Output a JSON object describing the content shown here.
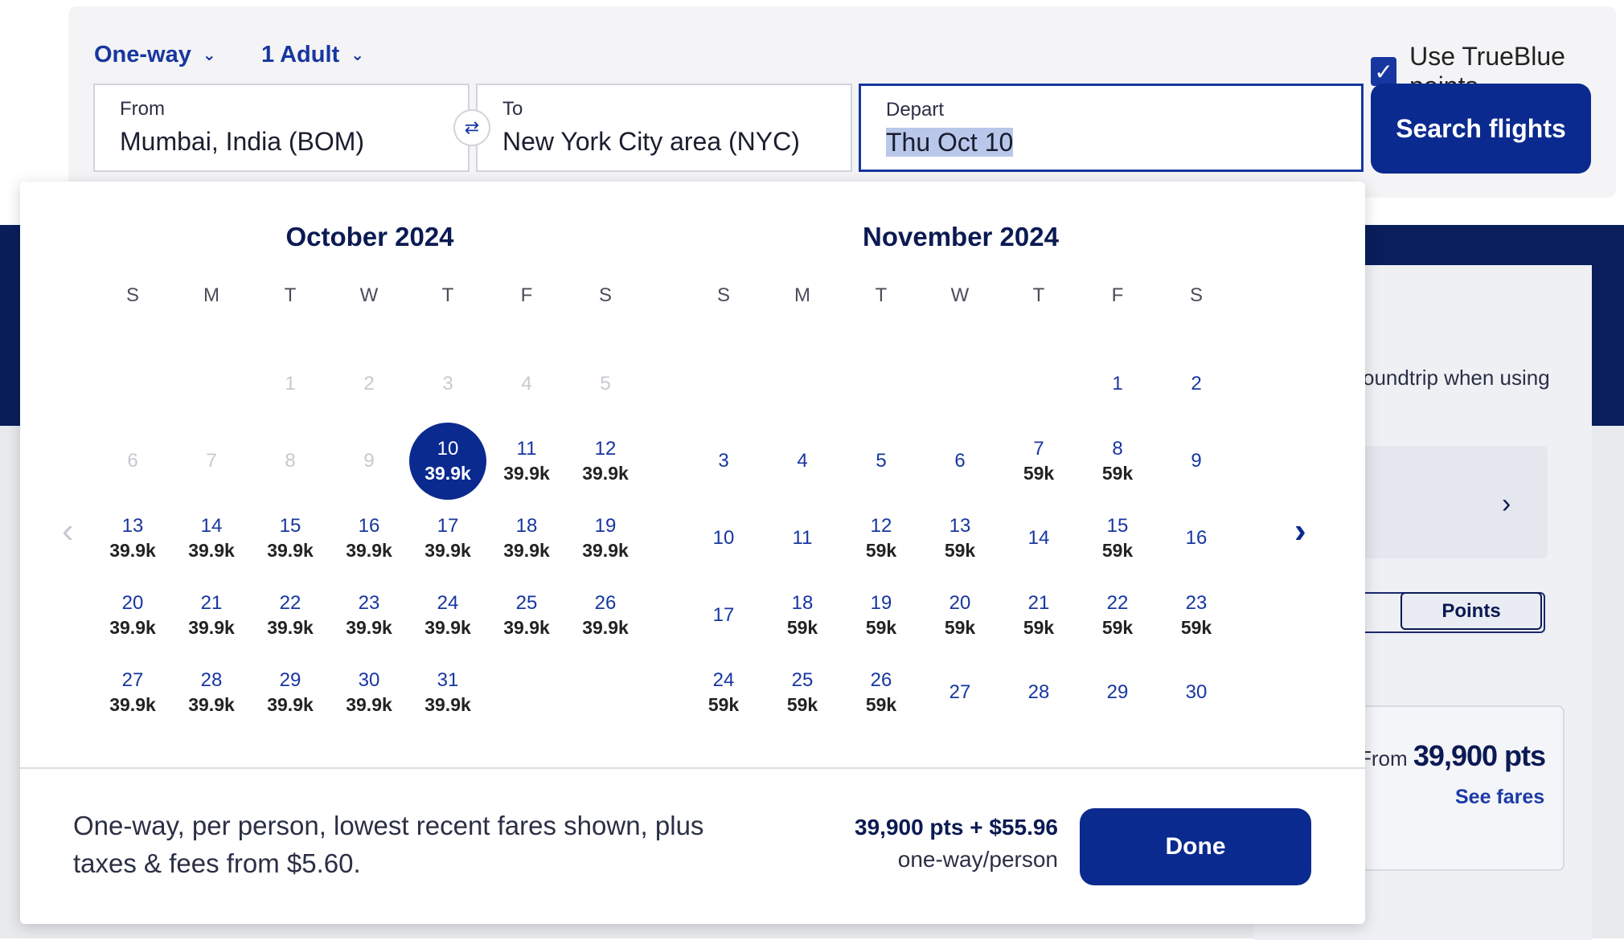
{
  "background": {
    "promo_text": "oundtrip when using",
    "points_toggle": "Points",
    "from_label": "From",
    "from_points": "39,900 pts",
    "see_fares": "See fares"
  },
  "search": {
    "trip_type": "One-way",
    "passengers": "1 Adult",
    "trueblue_label": "Use TrueBlue points",
    "trueblue_checked": true,
    "from_label": "From",
    "from_value": "Mumbai, India (BOM)",
    "to_label": "To",
    "to_value": "New York City area (NYC)",
    "depart_label": "Depart",
    "depart_value": "Thu Oct 10",
    "search_button": "Search flights"
  },
  "calendar": {
    "weekdays": [
      "S",
      "M",
      "T",
      "W",
      "T",
      "F",
      "S"
    ],
    "months": [
      {
        "title": "October 2024",
        "first_weekday": 2,
        "days": [
          {
            "d": "1",
            "p": "",
            "disabled": true
          },
          {
            "d": "2",
            "p": "",
            "disabled": true
          },
          {
            "d": "3",
            "p": "",
            "disabled": true
          },
          {
            "d": "4",
            "p": "",
            "disabled": true
          },
          {
            "d": "5",
            "p": "",
            "disabled": true
          },
          {
            "d": "6",
            "p": "",
            "disabled": true
          },
          {
            "d": "7",
            "p": "",
            "disabled": true
          },
          {
            "d": "8",
            "p": "",
            "disabled": true
          },
          {
            "d": "9",
            "p": "",
            "disabled": true
          },
          {
            "d": "10",
            "p": "39.9k",
            "selected": true
          },
          {
            "d": "11",
            "p": "39.9k"
          },
          {
            "d": "12",
            "p": "39.9k"
          },
          {
            "d": "13",
            "p": "39.9k"
          },
          {
            "d": "14",
            "p": "39.9k"
          },
          {
            "d": "15",
            "p": "39.9k"
          },
          {
            "d": "16",
            "p": "39.9k"
          },
          {
            "d": "17",
            "p": "39.9k"
          },
          {
            "d": "18",
            "p": "39.9k"
          },
          {
            "d": "19",
            "p": "39.9k"
          },
          {
            "d": "20",
            "p": "39.9k"
          },
          {
            "d": "21",
            "p": "39.9k"
          },
          {
            "d": "22",
            "p": "39.9k"
          },
          {
            "d": "23",
            "p": "39.9k"
          },
          {
            "d": "24",
            "p": "39.9k"
          },
          {
            "d": "25",
            "p": "39.9k"
          },
          {
            "d": "26",
            "p": "39.9k"
          },
          {
            "d": "27",
            "p": "39.9k"
          },
          {
            "d": "28",
            "p": "39.9k"
          },
          {
            "d": "29",
            "p": "39.9k"
          },
          {
            "d": "30",
            "p": "39.9k"
          },
          {
            "d": "31",
            "p": "39.9k"
          }
        ]
      },
      {
        "title": "November 2024",
        "first_weekday": 5,
        "days": [
          {
            "d": "1",
            "p": ""
          },
          {
            "d": "2",
            "p": ""
          },
          {
            "d": "3",
            "p": ""
          },
          {
            "d": "4",
            "p": ""
          },
          {
            "d": "5",
            "p": ""
          },
          {
            "d": "6",
            "p": ""
          },
          {
            "d": "7",
            "p": "59k"
          },
          {
            "d": "8",
            "p": "59k"
          },
          {
            "d": "9",
            "p": ""
          },
          {
            "d": "10",
            "p": ""
          },
          {
            "d": "11",
            "p": ""
          },
          {
            "d": "12",
            "p": "59k"
          },
          {
            "d": "13",
            "p": "59k"
          },
          {
            "d": "14",
            "p": ""
          },
          {
            "d": "15",
            "p": "59k"
          },
          {
            "d": "16",
            "p": ""
          },
          {
            "d": "17",
            "p": ""
          },
          {
            "d": "18",
            "p": "59k"
          },
          {
            "d": "19",
            "p": "59k"
          },
          {
            "d": "20",
            "p": "59k"
          },
          {
            "d": "21",
            "p": "59k"
          },
          {
            "d": "22",
            "p": "59k"
          },
          {
            "d": "23",
            "p": "59k"
          },
          {
            "d": "24",
            "p": "59k"
          },
          {
            "d": "25",
            "p": "59k"
          },
          {
            "d": "26",
            "p": "59k"
          },
          {
            "d": "27",
            "p": ""
          },
          {
            "d": "28",
            "p": ""
          },
          {
            "d": "29",
            "p": ""
          },
          {
            "d": "30",
            "p": ""
          }
        ]
      }
    ],
    "note": "One-way, per person, lowest recent fares shown, plus taxes & fees from $5.60.",
    "fare_total": "39,900 pts + $55.96",
    "fare_unit": "one-way/person",
    "done_button": "Done"
  }
}
